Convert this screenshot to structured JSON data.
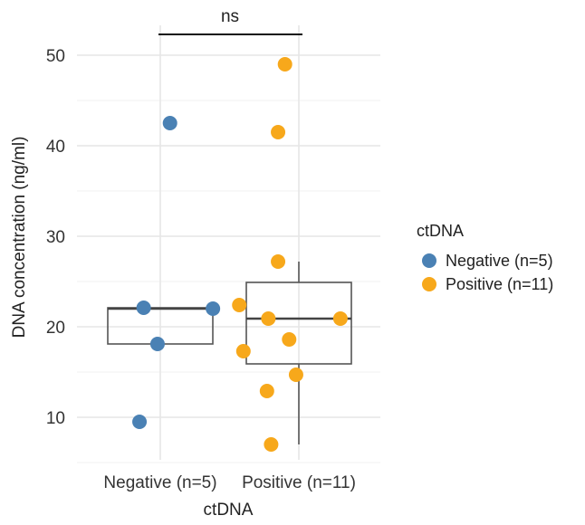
{
  "chart_data": {
    "type": "scatter",
    "subtype": "boxplot-with-points",
    "xlabel": "ctDNA",
    "ylabel": "DNA concentration (ng/ml)",
    "categories": [
      "Negative (n=5)",
      "Positive (n=11)"
    ],
    "ylim": [
      5,
      52
    ],
    "yticks": [
      10,
      20,
      30,
      40,
      50
    ],
    "grid": true,
    "series": [
      {
        "name": "Negative (n=5)",
        "color": "#4A81B4",
        "points": [
          {
            "x": -0.12,
            "y": 22.1
          },
          {
            "x": 0.07,
            "y": 42.5
          },
          {
            "x": 0.38,
            "y": 22.0
          },
          {
            "x": -0.02,
            "y": 18.1
          },
          {
            "x": -0.15,
            "y": 9.5
          }
        ]
      },
      {
        "name": "Positive (n=11)",
        "color": "#F7A81B",
        "points": [
          {
            "x": 0.9,
            "y": 49.0
          },
          {
            "x": 0.85,
            "y": 41.5
          },
          {
            "x": 0.85,
            "y": 27.2
          },
          {
            "x": 0.57,
            "y": 22.4
          },
          {
            "x": 0.78,
            "y": 20.9
          },
          {
            "x": 1.3,
            "y": 20.9
          },
          {
            "x": 0.6,
            "y": 17.3
          },
          {
            "x": 0.93,
            "y": 18.6
          },
          {
            "x": 0.98,
            "y": 14.7
          },
          {
            "x": 0.77,
            "y": 12.9
          },
          {
            "x": 0.8,
            "y": 7.0
          }
        ]
      }
    ],
    "boxes": [
      {
        "category": "Negative (n=5)",
        "q1": 18.1,
        "median": 22.0,
        "q3": 22.1,
        "whisker_low": 18.1,
        "whisker_high": 22.1
      },
      {
        "category": "Positive (n=11)",
        "q1": 15.9,
        "median": 20.9,
        "q3": 24.9,
        "whisker_low": 7.0,
        "whisker_high": 27.2
      }
    ],
    "significance": {
      "label": "ns",
      "from": "Negative (n=5)",
      "to": "Positive (n=11)"
    },
    "legend": {
      "title": "ctDNA",
      "placement": "right",
      "entries": [
        "Negative (n=5)",
        "Positive (n=11)"
      ]
    }
  }
}
